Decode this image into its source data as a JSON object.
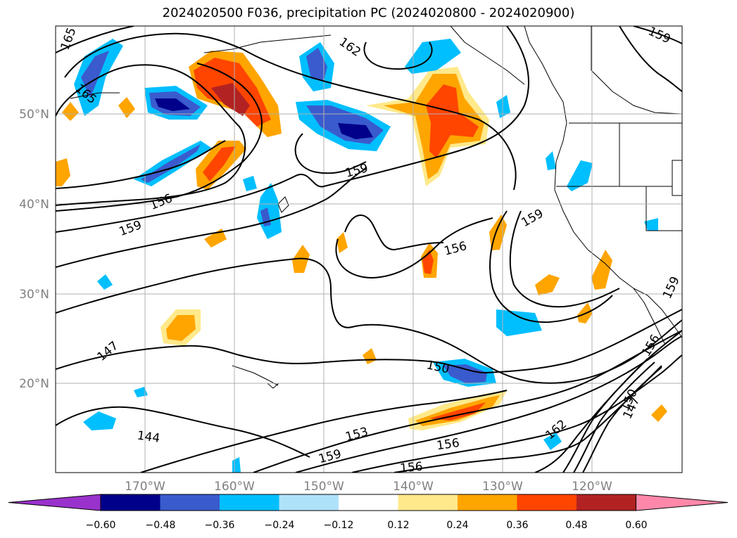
{
  "title": "2024020500 F036, precipitation PC (2024020800 - 2024020900)",
  "latitude_labels": [
    "50°N",
    "40°N",
    "30°N",
    "20°N"
  ],
  "longitude_labels": [
    "170°W",
    "160°W",
    "150°W",
    "140°W",
    "130°W",
    "120°W"
  ],
  "contour_labels": [
    "165",
    "165",
    "162",
    "159",
    "159",
    "156",
    "159",
    "159",
    "156",
    "147",
    "150",
    "144",
    "153",
    "159",
    "156",
    "156",
    "162",
    "150",
    "147",
    "156",
    "159"
  ],
  "colorbar": {
    "ticks": [
      "−0.60",
      "−0.48",
      "−0.36",
      "−0.24",
      "−0.12",
      "0.12",
      "0.24",
      "0.36",
      "0.48",
      "0.60"
    ],
    "colors": [
      "#9932cc",
      "#00008b",
      "#3a5bcd",
      "#00bfff",
      "#aee2fa",
      "#ffffff",
      "#ffe98a",
      "#ffa500",
      "#ff4500",
      "#b22222",
      "#ff88aa"
    ]
  }
}
